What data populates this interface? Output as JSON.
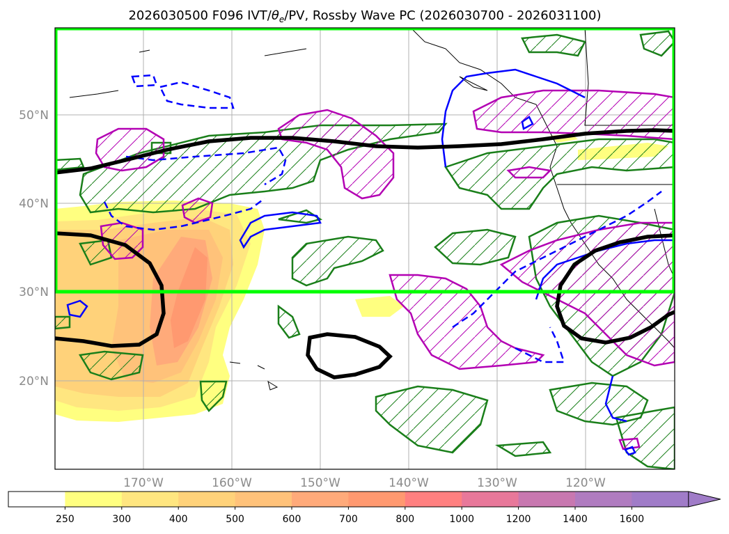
{
  "title": {
    "text_prefix": "2026030500 F096 IVT/",
    "theta_symbol": "θ",
    "theta_sub": "e",
    "text_suffix": "/PV, Rossby Wave PC (2026030700 - 2026031100)"
  },
  "map": {
    "region": "North Pacific",
    "lat_range": [
      10,
      60
    ],
    "lon_range": [
      -180,
      -110
    ],
    "lat_ticks": [
      "50°N",
      "40°N",
      "30°N",
      "20°N"
    ],
    "lon_ticks": [
      "170°W",
      "160°W",
      "150°W",
      "140°W",
      "130°W",
      "120°W"
    ],
    "highlight_box": {
      "lat_range": [
        30,
        60
      ],
      "lon_range": [
        -180,
        -110
      ],
      "color": "#00ff00"
    },
    "layers": [
      {
        "name": "IVT",
        "style": "filled contours",
        "palette": "yellow-orange-red"
      },
      {
        "name": "theta_e",
        "style": "hatched green contours",
        "color": "#1a7f1a"
      },
      {
        "name": "PV",
        "style": "hatched magenta contours",
        "color": "#b300b3"
      },
      {
        "name": "Rossby Wave PC",
        "style": "black thick contour",
        "color": "#000000"
      },
      {
        "name": "blue contours",
        "style": "solid and dashed",
        "color": "#0000ff"
      }
    ]
  },
  "colorbar": {
    "levels": [
      "250",
      "300",
      "400",
      "500",
      "600",
      "700",
      "800",
      "1000",
      "1200",
      "1400",
      "1600"
    ],
    "colors": [
      "#ffffff",
      "#ffff80",
      "#ffe680",
      "#ffd27a",
      "#ffc27a",
      "#ffaa7a",
      "#ff9970",
      "#ff8080",
      "#e8789a",
      "#c878b0",
      "#b07cc0",
      "#a07cc8"
    ],
    "extend": "max"
  },
  "icons": {
    "colorbar_extend": "triangle-arrow"
  }
}
